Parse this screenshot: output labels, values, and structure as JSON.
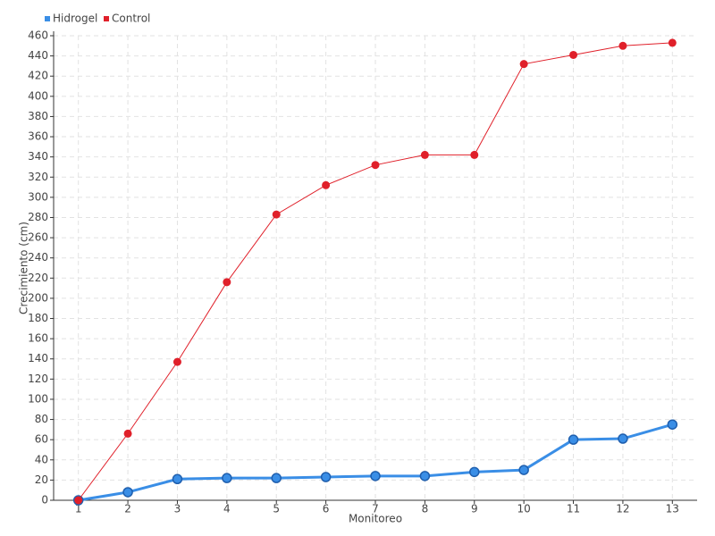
{
  "chart_data": {
    "type": "line",
    "xlabel": "Monitoreo",
    "ylabel": "Crecimiento (cm)",
    "categories": [
      "1",
      "2",
      "3",
      "4",
      "5",
      "6",
      "7",
      "8",
      "9",
      "10",
      "11",
      "12",
      "13"
    ],
    "series": [
      {
        "name": "Hidrogel",
        "color": "#3a8ee6",
        "values": [
          0,
          8,
          21,
          22,
          22,
          23,
          24,
          24,
          28,
          30,
          60,
          61,
          75
        ]
      },
      {
        "name": "Control",
        "color": "#e0202a",
        "values": [
          0,
          66,
          137,
          216,
          283,
          312,
          332,
          342,
          342,
          432,
          441,
          450,
          453
        ]
      }
    ],
    "ylim": [
      0,
      460
    ],
    "yticks": [
      0,
      20,
      40,
      60,
      80,
      100,
      120,
      140,
      160,
      180,
      200,
      220,
      240,
      260,
      280,
      300,
      320,
      340,
      360,
      380,
      400,
      420,
      440,
      460
    ],
    "grid": true,
    "legend": "top-left"
  }
}
